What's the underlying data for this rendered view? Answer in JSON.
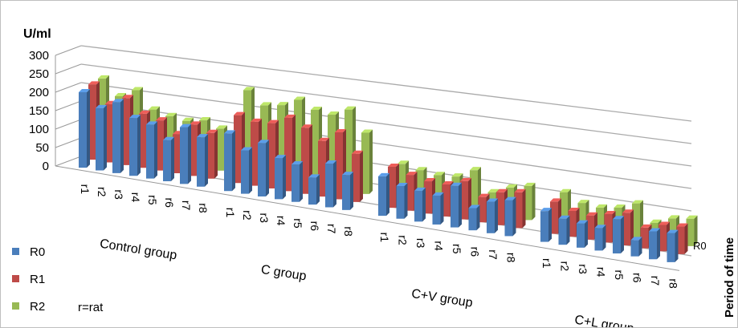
{
  "chart_data": {
    "type": "bar",
    "subtype": "3d-clustered",
    "ylabel": "U/ml",
    "zlabel": "Period of time",
    "ylim": [
      0,
      300
    ],
    "yticks": [
      "0",
      "50",
      "100",
      "150",
      "200",
      "250",
      "300"
    ],
    "depth_label": "R0",
    "groups": [
      "Control group",
      "C group",
      "C+V group",
      "C+L group"
    ],
    "categories": [
      "r1",
      "r2",
      "r3",
      "r4",
      "r5",
      "r6",
      "r7",
      "r8"
    ],
    "note": "r=rat",
    "series": [
      {
        "name": "R0",
        "color": "#4a7ebb",
        "values": [
          [
            205,
            170,
            195,
            160,
            150,
            115,
            160,
            140
          ],
          [
            165,
            125,
            155,
            120,
            110,
            80,
            130,
            105
          ],
          [
            120,
            100,
            95,
            90,
            130,
            70,
            100,
            115
          ],
          [
            100,
            85,
            80,
            75,
            115,
            55,
            95,
            100
          ]
        ]
      },
      {
        "name": "R1",
        "color": "#be4b48",
        "values": [
          [
            205,
            160,
            185,
            150,
            140,
            110,
            145,
            130
          ],
          [
            195,
            185,
            190,
            215,
            195,
            165,
            200,
            145
          ],
          [
            125,
            110,
            100,
            100,
            120,
            80,
            105,
            115
          ],
          [
            105,
            85,
            80,
            95,
            110,
            70,
            90,
            95
          ]
        ]
      },
      {
        "name": "R2",
        "color": "#98b954",
        "values": [
          [
            200,
            160,
            185,
            140,
            130,
            125,
            135,
            120
          ],
          [
            245,
            210,
            220,
            245,
            225,
            220,
            245,
            185
          ],
          [
            110,
            100,
            95,
            100,
            130,
            70,
            95,
            110
          ],
          [
            110,
            85,
            80,
            90,
            115,
            60,
            85,
            95
          ]
        ]
      }
    ]
  }
}
